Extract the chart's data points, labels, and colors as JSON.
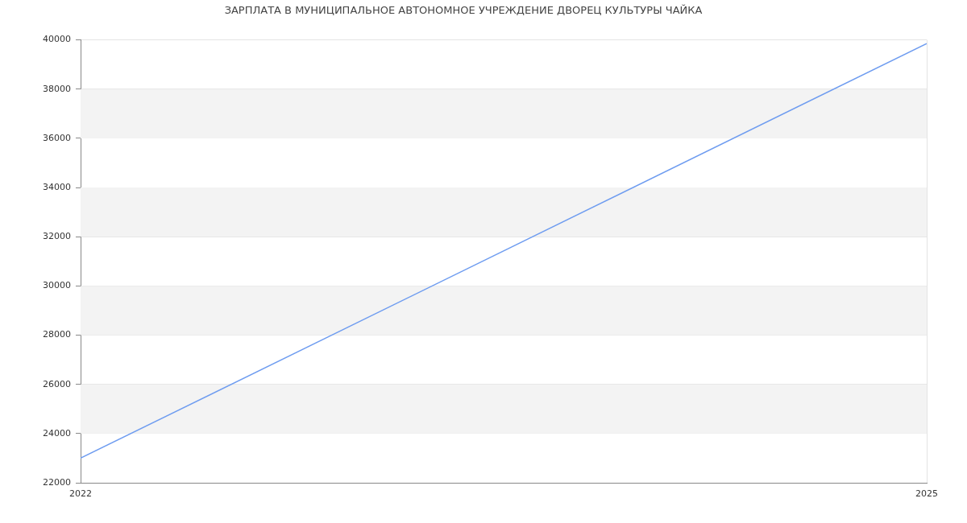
{
  "chart_data": {
    "type": "line",
    "title": "ЗАРПЛАТА В МУНИЦИПАЛЬНОЕ АВТОНОМНОЕ УЧРЕЖДЕНИЕ ДВОРЕЦ КУЛЬТУРЫ ЧАЙКА",
    "x": [
      2022,
      2025
    ],
    "values": [
      23000,
      39850
    ],
    "color": "#6e9cf0",
    "xlim": [
      2022,
      2025
    ],
    "xticks": [
      2022,
      2025
    ],
    "ylim": [
      22000,
      40000
    ],
    "yticks": [
      22000,
      24000,
      26000,
      28000,
      30000,
      32000,
      34000,
      36000,
      38000,
      40000
    ],
    "grid": true,
    "legend": false
  }
}
